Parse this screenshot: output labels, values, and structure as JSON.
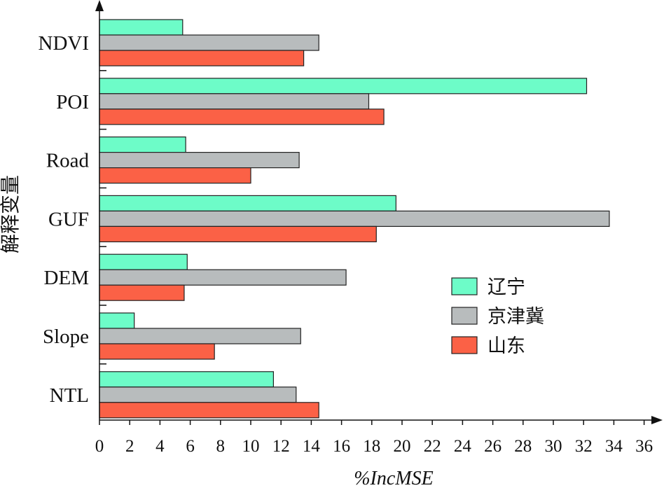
{
  "chart_data": {
    "type": "bar",
    "orientation": "horizontal",
    "categories": [
      "NDVI",
      "POI",
      "Road",
      "GUF",
      "DEM",
      "Slope",
      "NTL"
    ],
    "series": [
      {
        "name": "辽宁",
        "color": "#6dfcc8",
        "values": [
          5.5,
          32.2,
          5.7,
          19.6,
          5.8,
          2.3,
          11.5
        ]
      },
      {
        "name": "京津冀",
        "color": "#b8bcbd",
        "values": [
          14.5,
          17.8,
          13.2,
          33.7,
          16.3,
          13.3,
          13.0
        ]
      },
      {
        "name": "山东",
        "color": "#fb6146",
        "values": [
          13.5,
          18.8,
          10.0,
          18.3,
          5.6,
          7.6,
          14.5
        ]
      }
    ],
    "xlabel": "%IncMSE",
    "ylabel": "解释变量",
    "xlim": [
      0,
      36
    ],
    "xticks": [
      "0",
      "2",
      "4",
      "6",
      "8",
      "10",
      "12",
      "14",
      "16",
      "18",
      "20",
      "22",
      "24",
      "26",
      "28",
      "30",
      "32",
      "34",
      "36"
    ],
    "grid": false,
    "legend_position": "lower-right"
  }
}
